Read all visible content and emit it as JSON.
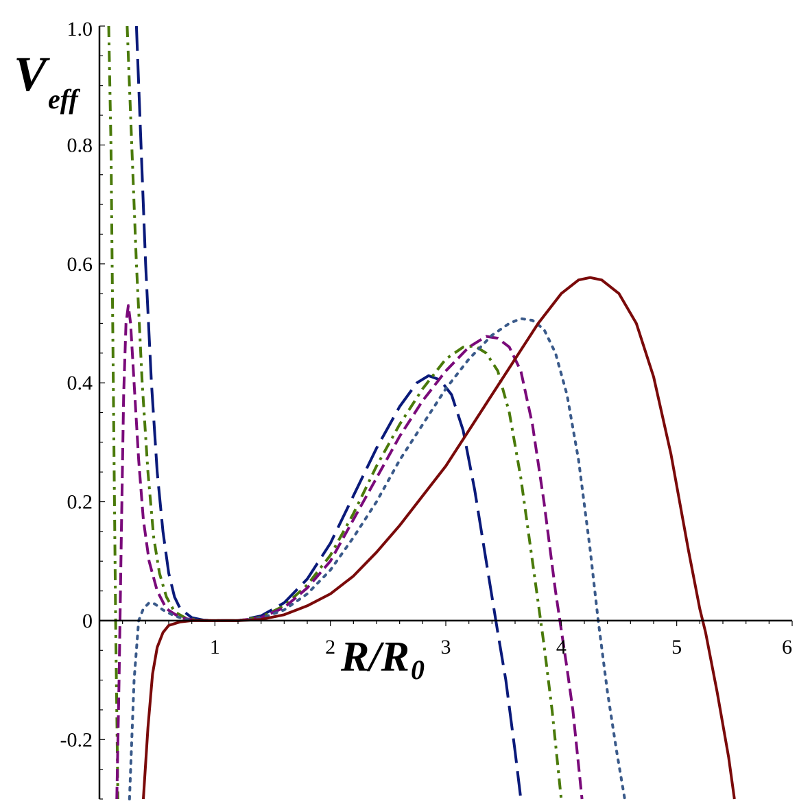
{
  "chart_data": {
    "type": "line",
    "title": "",
    "xlabel": {
      "main": "R/R",
      "sub": "0"
    },
    "ylabel": {
      "main": "V",
      "sub": "eff"
    },
    "xlim": [
      0,
      6
    ],
    "ylim": [
      -0.3,
      1.0
    ],
    "x_ticks": [
      {
        "value": 1,
        "label": "1"
      },
      {
        "value": 2,
        "label": "2"
      },
      {
        "value": 3,
        "label": "3"
      },
      {
        "value": 4,
        "label": "4"
      },
      {
        "value": 5,
        "label": "5"
      },
      {
        "value": 6,
        "label": "6"
      }
    ],
    "y_ticks": [
      {
        "value": -0.2,
        "label": "-0.2"
      },
      {
        "value": 0,
        "label": "0"
      },
      {
        "value": 0.2,
        "label": "0.2"
      },
      {
        "value": 0.4,
        "label": "0.4"
      },
      {
        "value": 0.6,
        "label": "0.6"
      },
      {
        "value": 0.8,
        "label": "0.8"
      },
      {
        "value": 1.0,
        "label": "1.0"
      }
    ],
    "grid": false,
    "legend": "none",
    "series": [
      {
        "color": "#0a1a7a",
        "style": "long-dash",
        "points": [
          [
            0.32,
            1.0
          ],
          [
            0.36,
            0.8
          ],
          [
            0.4,
            0.6
          ],
          [
            0.45,
            0.4
          ],
          [
            0.5,
            0.25
          ],
          [
            0.55,
            0.15
          ],
          [
            0.6,
            0.08
          ],
          [
            0.65,
            0.04
          ],
          [
            0.7,
            0.02
          ],
          [
            0.8,
            0.005
          ],
          [
            0.9,
            0.001
          ],
          [
            1.0,
            0.0
          ],
          [
            1.2,
            0.0
          ],
          [
            1.4,
            0.008
          ],
          [
            1.6,
            0.03
          ],
          [
            1.8,
            0.07
          ],
          [
            2.0,
            0.13
          ],
          [
            2.2,
            0.21
          ],
          [
            2.4,
            0.29
          ],
          [
            2.6,
            0.36
          ],
          [
            2.75,
            0.4
          ],
          [
            2.85,
            0.412
          ],
          [
            2.95,
            0.405
          ],
          [
            3.05,
            0.38
          ],
          [
            3.15,
            0.32
          ],
          [
            3.25,
            0.22
          ],
          [
            3.35,
            0.1
          ],
          [
            3.45,
            -0.02
          ],
          [
            3.52,
            -0.1
          ],
          [
            3.6,
            -0.22
          ],
          [
            3.65,
            -0.3
          ]
        ]
      },
      {
        "color": "#4a7a0a",
        "style": "dash-dot",
        "points": [
          [
            0.08,
            1.0
          ],
          [
            0.1,
            0.8
          ],
          [
            0.12,
            0.4
          ],
          [
            0.14,
            0.0
          ],
          [
            0.16,
            -0.3
          ]
        ]
      },
      {
        "color": "#4a7a0a",
        "style": "dash-dot",
        "points": [
          [
            0.24,
            1.0
          ],
          [
            0.28,
            0.8
          ],
          [
            0.32,
            0.6
          ],
          [
            0.37,
            0.4
          ],
          [
            0.42,
            0.25
          ],
          [
            0.47,
            0.14
          ],
          [
            0.52,
            0.08
          ],
          [
            0.58,
            0.04
          ],
          [
            0.65,
            0.015
          ],
          [
            0.75,
            0.004
          ],
          [
            0.9,
            0.0
          ],
          [
            1.2,
            0.0
          ],
          [
            1.4,
            0.006
          ],
          [
            1.6,
            0.025
          ],
          [
            1.8,
            0.06
          ],
          [
            2.0,
            0.11
          ],
          [
            2.2,
            0.18
          ],
          [
            2.4,
            0.26
          ],
          [
            2.6,
            0.33
          ],
          [
            2.8,
            0.39
          ],
          [
            3.0,
            0.44
          ],
          [
            3.15,
            0.46
          ],
          [
            3.25,
            0.462
          ],
          [
            3.35,
            0.45
          ],
          [
            3.45,
            0.42
          ],
          [
            3.55,
            0.35
          ],
          [
            3.65,
            0.24
          ],
          [
            3.75,
            0.1
          ],
          [
            3.85,
            -0.04
          ],
          [
            3.92,
            -0.15
          ],
          [
            4.0,
            -0.3
          ]
        ]
      },
      {
        "color": "#7a0a7a",
        "style": "dash",
        "points": [
          [
            0.15,
            -0.3
          ],
          [
            0.17,
            -0.1
          ],
          [
            0.19,
            0.15
          ],
          [
            0.21,
            0.38
          ],
          [
            0.23,
            0.5
          ],
          [
            0.25,
            0.53
          ],
          [
            0.27,
            0.5
          ],
          [
            0.3,
            0.4
          ],
          [
            0.34,
            0.27
          ],
          [
            0.38,
            0.17
          ],
          [
            0.43,
            0.1
          ],
          [
            0.5,
            0.05
          ],
          [
            0.58,
            0.02
          ],
          [
            0.7,
            0.005
          ],
          [
            0.85,
            0.0
          ],
          [
            1.2,
            0.0
          ],
          [
            1.4,
            0.005
          ],
          [
            1.6,
            0.022
          ],
          [
            1.8,
            0.055
          ],
          [
            2.0,
            0.1
          ],
          [
            2.2,
            0.17
          ],
          [
            2.4,
            0.24
          ],
          [
            2.6,
            0.31
          ],
          [
            2.8,
            0.37
          ],
          [
            3.0,
            0.42
          ],
          [
            3.2,
            0.46
          ],
          [
            3.35,
            0.478
          ],
          [
            3.45,
            0.475
          ],
          [
            3.55,
            0.46
          ],
          [
            3.65,
            0.42
          ],
          [
            3.75,
            0.33
          ],
          [
            3.85,
            0.2
          ],
          [
            3.95,
            0.05
          ],
          [
            4.05,
            -0.08
          ],
          [
            4.1,
            -0.15
          ],
          [
            4.18,
            -0.3
          ]
        ]
      },
      {
        "color": "#3a5a8a",
        "style": "dot",
        "points": [
          [
            0.26,
            -0.3
          ],
          [
            0.3,
            -0.1
          ],
          [
            0.34,
            0.0
          ],
          [
            0.38,
            0.02
          ],
          [
            0.43,
            0.03
          ],
          [
            0.48,
            0.028
          ],
          [
            0.55,
            0.018
          ],
          [
            0.65,
            0.008
          ],
          [
            0.75,
            0.002
          ],
          [
            0.9,
            0.0
          ],
          [
            1.2,
            0.0
          ],
          [
            1.4,
            0.004
          ],
          [
            1.6,
            0.018
          ],
          [
            1.8,
            0.045
          ],
          [
            2.0,
            0.085
          ],
          [
            2.2,
            0.14
          ],
          [
            2.4,
            0.2
          ],
          [
            2.6,
            0.27
          ],
          [
            2.8,
            0.33
          ],
          [
            3.0,
            0.39
          ],
          [
            3.2,
            0.44
          ],
          [
            3.4,
            0.48
          ],
          [
            3.55,
            0.5
          ],
          [
            3.65,
            0.508
          ],
          [
            3.75,
            0.505
          ],
          [
            3.85,
            0.49
          ],
          [
            3.95,
            0.45
          ],
          [
            4.05,
            0.38
          ],
          [
            4.15,
            0.27
          ],
          [
            4.25,
            0.12
          ],
          [
            4.32,
            0.0
          ],
          [
            4.4,
            -0.12
          ],
          [
            4.48,
            -0.22
          ],
          [
            4.55,
            -0.3
          ]
        ]
      },
      {
        "color": "#7a0a0a",
        "style": "solid",
        "points": [
          [
            0.38,
            -0.3
          ],
          [
            0.42,
            -0.18
          ],
          [
            0.46,
            -0.09
          ],
          [
            0.5,
            -0.045
          ],
          [
            0.55,
            -0.02
          ],
          [
            0.6,
            -0.008
          ],
          [
            0.7,
            -0.002
          ],
          [
            0.8,
            0.0
          ],
          [
            1.2,
            0.0
          ],
          [
            1.4,
            0.002
          ],
          [
            1.6,
            0.01
          ],
          [
            1.8,
            0.025
          ],
          [
            2.0,
            0.045
          ],
          [
            2.2,
            0.075
          ],
          [
            2.4,
            0.115
          ],
          [
            2.6,
            0.16
          ],
          [
            2.8,
            0.21
          ],
          [
            3.0,
            0.26
          ],
          [
            3.2,
            0.32
          ],
          [
            3.4,
            0.38
          ],
          [
            3.6,
            0.44
          ],
          [
            3.8,
            0.5
          ],
          [
            4.0,
            0.55
          ],
          [
            4.15,
            0.573
          ],
          [
            4.25,
            0.577
          ],
          [
            4.35,
            0.573
          ],
          [
            4.5,
            0.55
          ],
          [
            4.65,
            0.5
          ],
          [
            4.8,
            0.41
          ],
          [
            4.95,
            0.28
          ],
          [
            5.1,
            0.12
          ],
          [
            5.2,
            0.02
          ],
          [
            5.25,
            -0.02
          ],
          [
            5.35,
            -0.12
          ],
          [
            5.45,
            -0.23
          ],
          [
            5.5,
            -0.3
          ]
        ]
      }
    ]
  }
}
